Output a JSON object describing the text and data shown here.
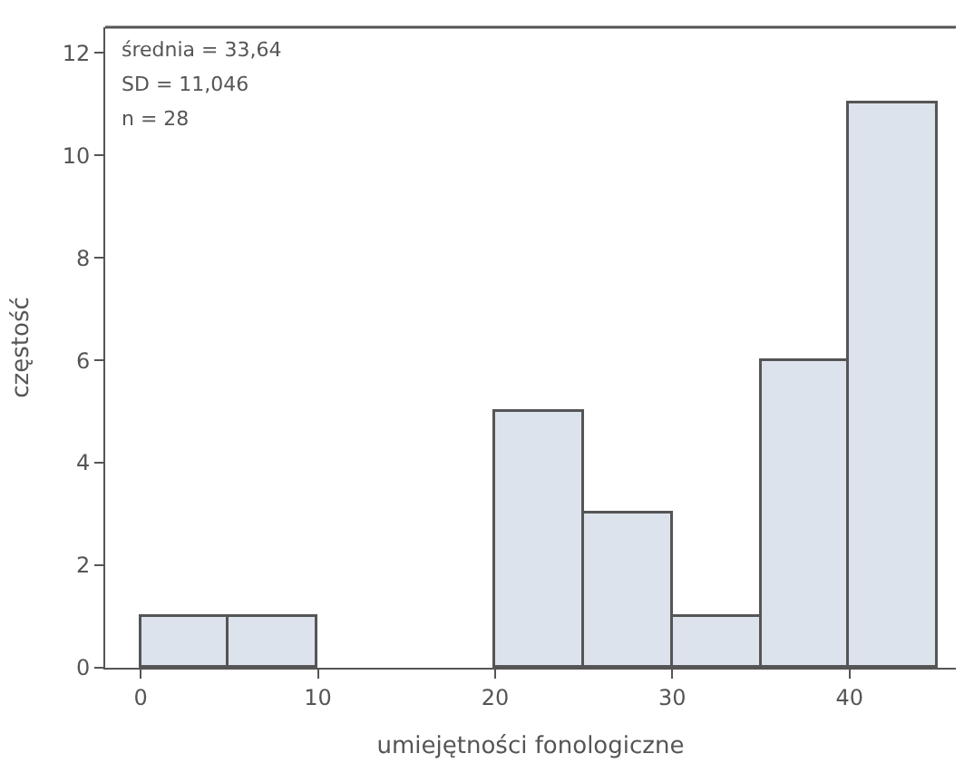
{
  "chart_data": {
    "type": "histogram",
    "xlabel": "umiejętności fonologiczne",
    "ylabel": "częstość",
    "bins": [
      0,
      5,
      10,
      15,
      20,
      25,
      30,
      35,
      40,
      45
    ],
    "values": [
      1,
      1,
      0,
      0,
      5,
      3,
      1,
      6,
      11
    ],
    "color": "#dde3ec",
    "xlim": [
      -2,
      46
    ],
    "xticks": [
      0,
      10,
      20,
      30,
      40
    ],
    "ylim": [
      0,
      12.5
    ],
    "yticks": [
      0,
      2,
      4,
      6,
      8,
      10,
      12
    ],
    "annotations": [
      "średnia = 33,64",
      "SD = 11,046",
      "n = 28"
    ]
  }
}
